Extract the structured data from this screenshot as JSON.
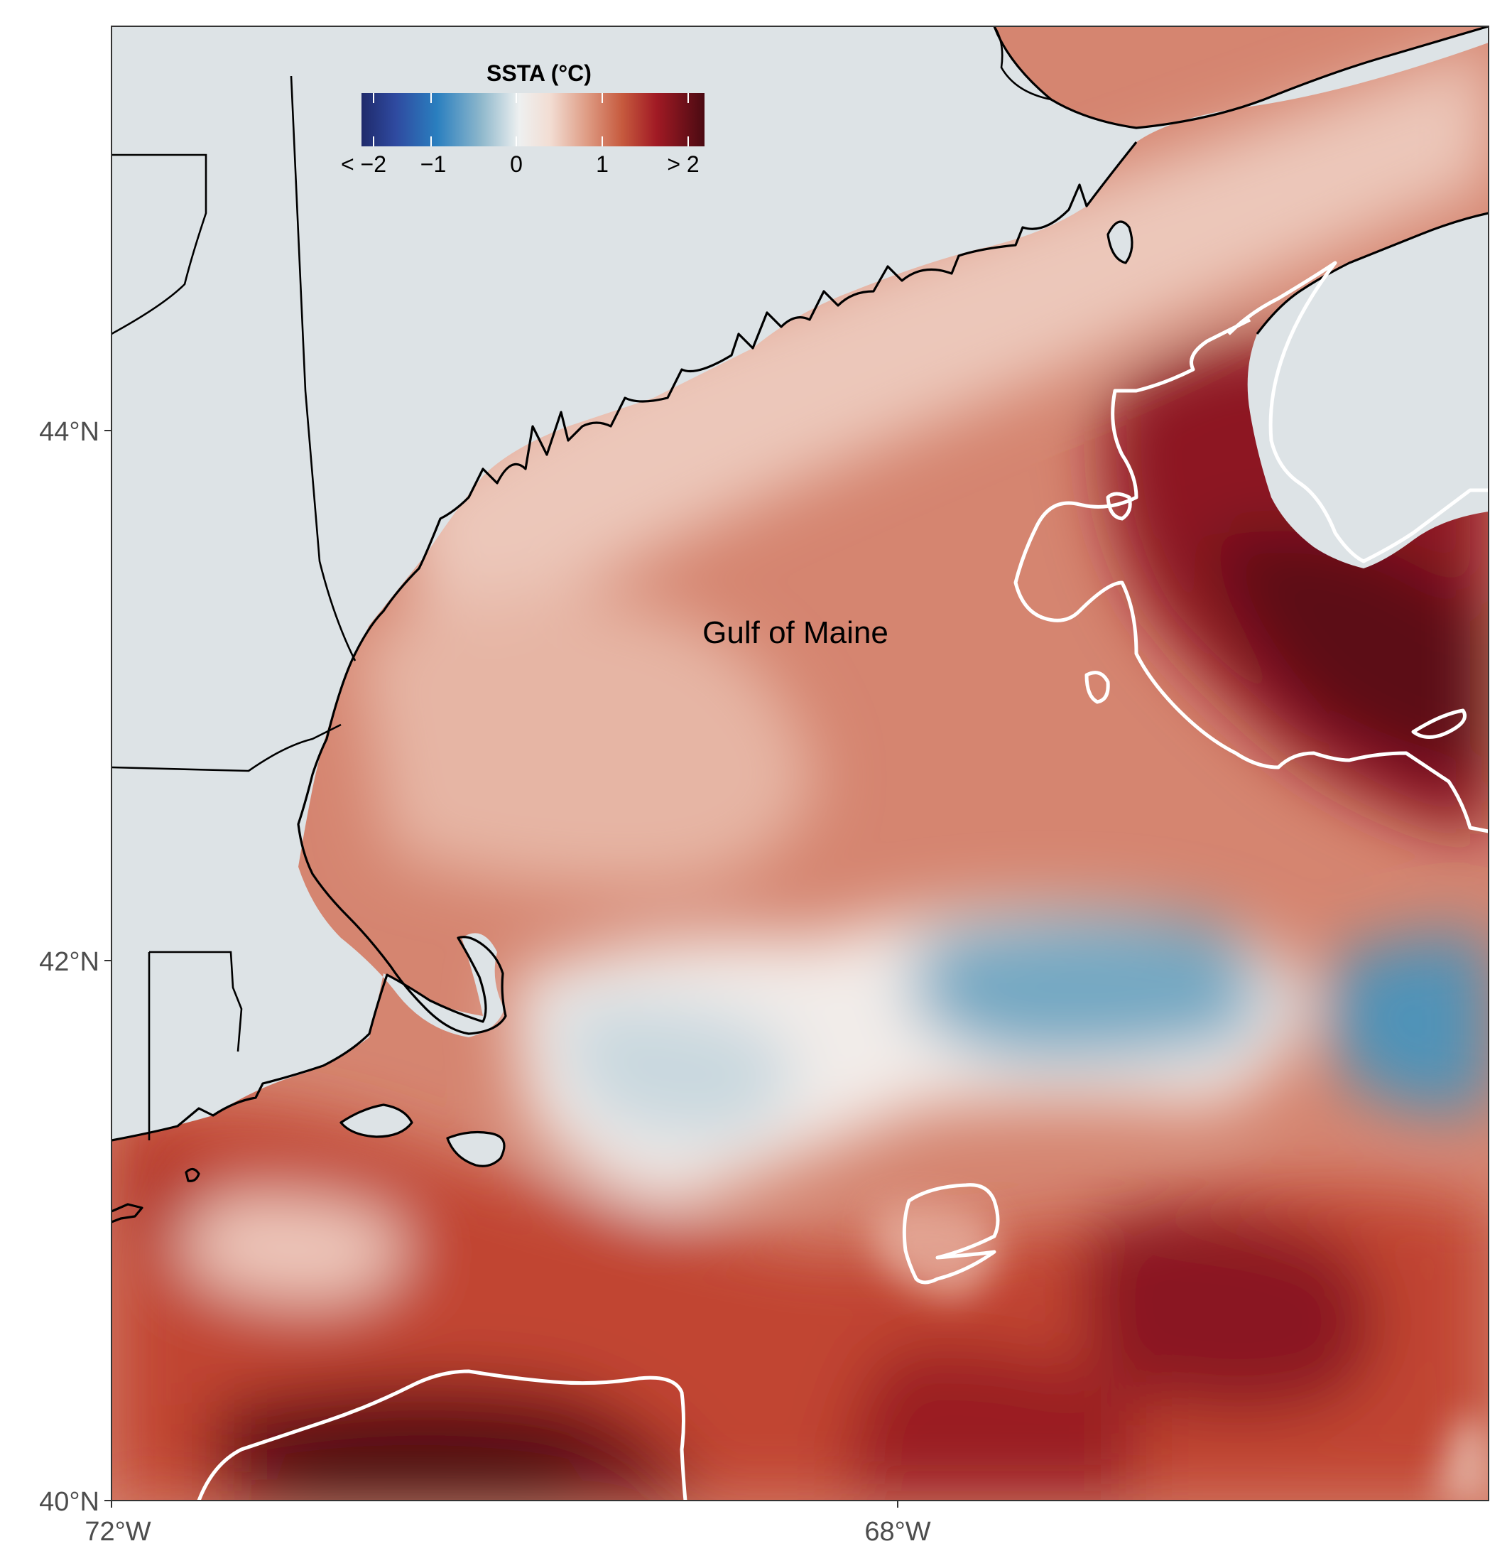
{
  "legend": {
    "title": "SSTA (°C)",
    "ticks": [
      "< −2",
      "−1",
      "0",
      "1",
      "> 2"
    ],
    "colors": [
      "#1f2a6b",
      "#2f4aa0",
      "#2a7fbf",
      "#6fa9c8",
      "#d8dfe3",
      "#f4e7e2",
      "#e2a58f",
      "#cc6647",
      "#b53024",
      "#8c1022",
      "#4a0a12"
    ]
  },
  "place_labels": {
    "gulf_of_maine": "Gulf of Maine"
  },
  "axes": {
    "x_ticks": [
      "72°W",
      "68°W"
    ],
    "y_ticks": [
      "44°N",
      "42°N",
      "40°N"
    ]
  },
  "colors": {
    "land": "#dde3e6",
    "ocean_base": "#d98c78",
    "coastline": "#000000",
    "contour": "#ffffff",
    "frame": "#333333"
  }
}
